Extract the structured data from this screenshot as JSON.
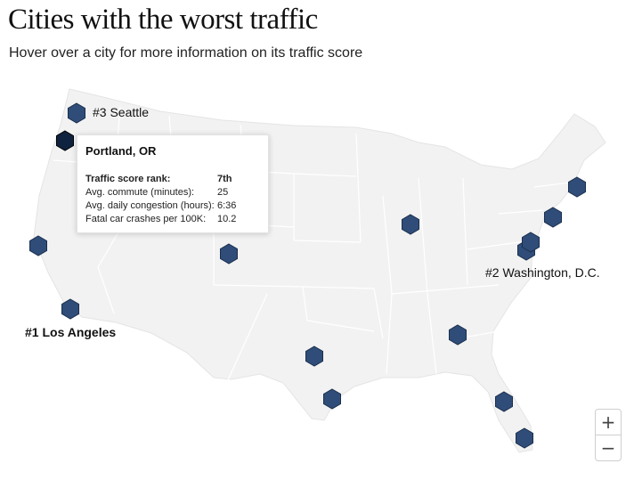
{
  "title": "Cities with the worst traffic",
  "subtitle": "Hover over a city for more information on its traffic score",
  "colors": {
    "marker": "#2f4d78",
    "marker_highlight": "#0f223f",
    "land": "#f2f2f2",
    "border": "#ffffff"
  },
  "labels": {
    "seattle": "#3 Seattle",
    "la": "#1 Los Angeles",
    "dc": "#2 Washington, D.C."
  },
  "tooltip": {
    "title": "Portland, OR",
    "rows": [
      {
        "label": "Traffic score rank:",
        "value": "7th"
      },
      {
        "label": "Avg. commute (minutes):",
        "value": "25"
      },
      {
        "label": "Avg. daily congestion (hours):",
        "value": "6:36"
      },
      {
        "label": "Fatal car crashes per 100K:",
        "value": "10.2"
      }
    ]
  },
  "zoom": {
    "in_icon": "+",
    "out_icon": "−"
  },
  "markers": [
    {
      "id": "seattle"
    },
    {
      "id": "portland",
      "highlighted": true
    },
    {
      "id": "sf-bay"
    },
    {
      "id": "los-angeles"
    },
    {
      "id": "denver"
    },
    {
      "id": "chicago"
    },
    {
      "id": "dallas"
    },
    {
      "id": "houston"
    },
    {
      "id": "atlanta"
    },
    {
      "id": "orlando"
    },
    {
      "id": "miami"
    },
    {
      "id": "washington-dc"
    },
    {
      "id": "baltimore"
    },
    {
      "id": "philadelphia"
    },
    {
      "id": "boston"
    }
  ]
}
